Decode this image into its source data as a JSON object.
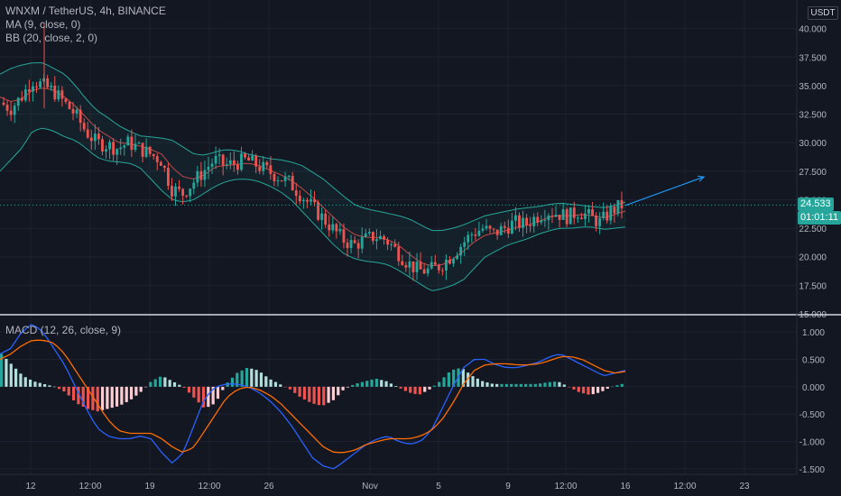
{
  "legend": {
    "symbol": "WNXM / TetherUS, 4h, BINANCE",
    "ma": "MA (9, close, 0)",
    "bb": "BB (20, close, 2, 0)",
    "macd": "MACD (12, 26, close, 9)"
  },
  "currency": "USDT",
  "price_badge": "24.533",
  "timer_badge": "01:01:11",
  "colors": {
    "background": "#131722",
    "grid": "#1e2230",
    "axis_text": "#b2b5be",
    "up": "#26a69a",
    "down": "#ef5350",
    "bb_band": "#26a69a",
    "ma": "#ef5350",
    "macd_line": "#2962ff",
    "signal_line": "#ff6d00",
    "projection": "#2196f3"
  },
  "chart_data": [
    {
      "type": "candlestick",
      "title": "WNXM / TetherUS, 4h, BINANCE",
      "ylim": [
        15,
        42.5
      ],
      "y_ticks": [
        "15.000",
        "17.500",
        "20.000",
        "22.500",
        "25.000",
        "27.500",
        "30.000",
        "32.500",
        "35.000",
        "37.500",
        "40.000"
      ],
      "x_ticks": [
        "12",
        "12:00",
        "19",
        "12:00",
        "26",
        "Nov",
        "5",
        "9",
        "12:00",
        "16",
        "12:00",
        "23"
      ],
      "last_price": 24.533,
      "close_path": [
        33.5,
        33.0,
        34.0,
        35.5,
        35.0,
        34.5,
        33.5,
        32.5,
        31.0,
        30.0,
        29.8,
        29.5,
        30.0,
        29.5,
        29.0,
        28.5,
        26.0,
        25.5,
        26.5,
        27.5,
        28.5,
        28.0,
        28.2,
        28.5,
        28.0,
        27.5,
        27.0,
        26.5,
        25.5,
        24.5,
        23.5,
        22.5,
        21.5,
        21.0,
        21.5,
        21.8,
        21.5,
        20.5,
        19.5,
        18.8,
        18.8,
        19.2,
        20.0,
        21.0,
        22.0,
        22.5,
        22.0,
        22.5,
        23.0,
        22.8,
        23.5,
        24.0,
        23.8,
        23.5,
        24.0,
        23.5,
        23.0,
        24.0,
        24.5
      ],
      "ma_path": [
        34.0,
        33.6,
        33.8,
        34.6,
        34.8,
        34.6,
        34.0,
        33.2,
        32.2,
        31.2,
        30.6,
        30.0,
        29.9,
        29.7,
        29.4,
        29.0,
        27.8,
        27.0,
        26.8,
        27.2,
        27.9,
        28.0,
        28.1,
        28.2,
        28.0,
        27.6,
        27.2,
        26.7,
        26.0,
        25.2,
        24.3,
        23.4,
        22.5,
        21.9,
        21.7,
        21.7,
        21.5,
        21.0,
        20.2,
        19.5,
        19.2,
        19.3,
        19.8,
        20.5,
        21.3,
        21.9,
        22.1,
        22.3,
        22.6,
        22.8,
        23.1,
        23.5,
        23.6,
        23.6,
        23.7,
        23.6,
        23.4,
        23.7,
        24.0
      ],
      "bb_upper_path": [
        36.0,
        36.5,
        36.8,
        37.0,
        37.0,
        36.5,
        36.0,
        35.0,
        33.8,
        32.8,
        32.2,
        31.5,
        31.0,
        30.6,
        30.5,
        30.4,
        30.2,
        29.6,
        29.0,
        28.9,
        29.2,
        29.4,
        29.3,
        29.0,
        28.8,
        28.6,
        28.5,
        28.3,
        28.0,
        27.4,
        26.8,
        26.0,
        25.2,
        24.5,
        24.2,
        24.0,
        23.8,
        23.6,
        23.3,
        22.8,
        22.3,
        22.3,
        22.5,
        22.8,
        23.2,
        23.6,
        23.8,
        24.0,
        24.2,
        24.3,
        24.4,
        24.6,
        24.7,
        24.6,
        24.5,
        24.4,
        24.3,
        24.5,
        24.8
      ],
      "bb_lower_path": [
        27.5,
        28.5,
        29.5,
        31.0,
        31.3,
        31.0,
        30.5,
        30.2,
        29.5,
        28.7,
        28.4,
        28.3,
        28.2,
        27.8,
        26.8,
        25.8,
        25.0,
        24.8,
        25.0,
        25.6,
        26.2,
        26.6,
        26.8,
        26.8,
        26.6,
        26.2,
        25.7,
        25.0,
        24.0,
        23.0,
        22.0,
        21.0,
        20.2,
        19.8,
        19.6,
        19.5,
        19.3,
        18.8,
        18.2,
        17.6,
        17.0,
        17.2,
        17.5,
        18.0,
        19.0,
        20.0,
        20.5,
        21.0,
        21.3,
        21.6,
        22.0,
        22.3,
        22.5,
        22.5,
        22.6,
        22.6,
        22.4,
        22.5,
        22.6
      ],
      "projection": {
        "from": 24.5,
        "to": 27.0
      }
    },
    {
      "type": "line",
      "title": "MACD (12, 26, close, 9)",
      "ylim": [
        -1.6,
        1.25
      ],
      "y_ticks": [
        "-1.500",
        "-1.000",
        "-0.500",
        "0.000",
        "0.500",
        "1.000"
      ],
      "macd_path": [
        0.6,
        0.7,
        1.0,
        1.15,
        1.0,
        0.7,
        0.4,
        0.0,
        -0.4,
        -0.75,
        -0.9,
        -0.95,
        -0.95,
        -0.9,
        -0.95,
        -1.2,
        -1.4,
        -1.2,
        -0.7,
        -0.2,
        0.0,
        0.05,
        0.05,
        0.0,
        -0.1,
        -0.25,
        -0.45,
        -0.7,
        -1.0,
        -1.3,
        -1.45,
        -1.5,
        -1.35,
        -1.2,
        -1.05,
        -0.95,
        -0.9,
        -1.0,
        -1.05,
        -1.0,
        -0.8,
        -0.4,
        0.0,
        0.35,
        0.5,
        0.5,
        0.4,
        0.35,
        0.35,
        0.4,
        0.45,
        0.55,
        0.6,
        0.5,
        0.4,
        0.3,
        0.2,
        0.25,
        0.3
      ],
      "signal_path": [
        0.5,
        0.6,
        0.75,
        0.85,
        0.85,
        0.8,
        0.6,
        0.3,
        0.0,
        -0.3,
        -0.6,
        -0.8,
        -0.85,
        -0.85,
        -0.85,
        -0.95,
        -1.1,
        -1.2,
        -1.1,
        -0.8,
        -0.5,
        -0.2,
        -0.05,
        0.0,
        -0.05,
        -0.15,
        -0.3,
        -0.5,
        -0.7,
        -0.9,
        -1.1,
        -1.2,
        -1.2,
        -1.15,
        -1.05,
        -1.0,
        -0.95,
        -0.95,
        -0.95,
        -0.9,
        -0.8,
        -0.6,
        -0.3,
        0.05,
        0.3,
        0.4,
        0.42,
        0.42,
        0.4,
        0.4,
        0.42,
        0.48,
        0.55,
        0.55,
        0.5,
        0.4,
        0.3,
        0.25,
        0.28
      ],
      "histogram_path": [
        0.6,
        0.4,
        0.2,
        0.1,
        0.05,
        0.0,
        -0.1,
        -0.3,
        -0.4,
        -0.45,
        -0.4,
        -0.35,
        -0.25,
        -0.1,
        0.1,
        0.2,
        0.1,
        0.0,
        -0.2,
        -0.4,
        -0.3,
        0.05,
        0.25,
        0.35,
        0.3,
        0.15,
        0.05,
        -0.05,
        -0.2,
        -0.3,
        -0.35,
        -0.25,
        -0.05,
        0.05,
        0.1,
        0.15,
        0.1,
        0.0,
        -0.1,
        -0.15,
        -0.05,
        0.1,
        0.3,
        0.35,
        0.2,
        0.1,
        0.05,
        0.05,
        0.05,
        0.05,
        0.05,
        0.08,
        0.1,
        0.0,
        -0.1,
        -0.15,
        -0.1,
        0.0,
        0.05
      ]
    }
  ]
}
